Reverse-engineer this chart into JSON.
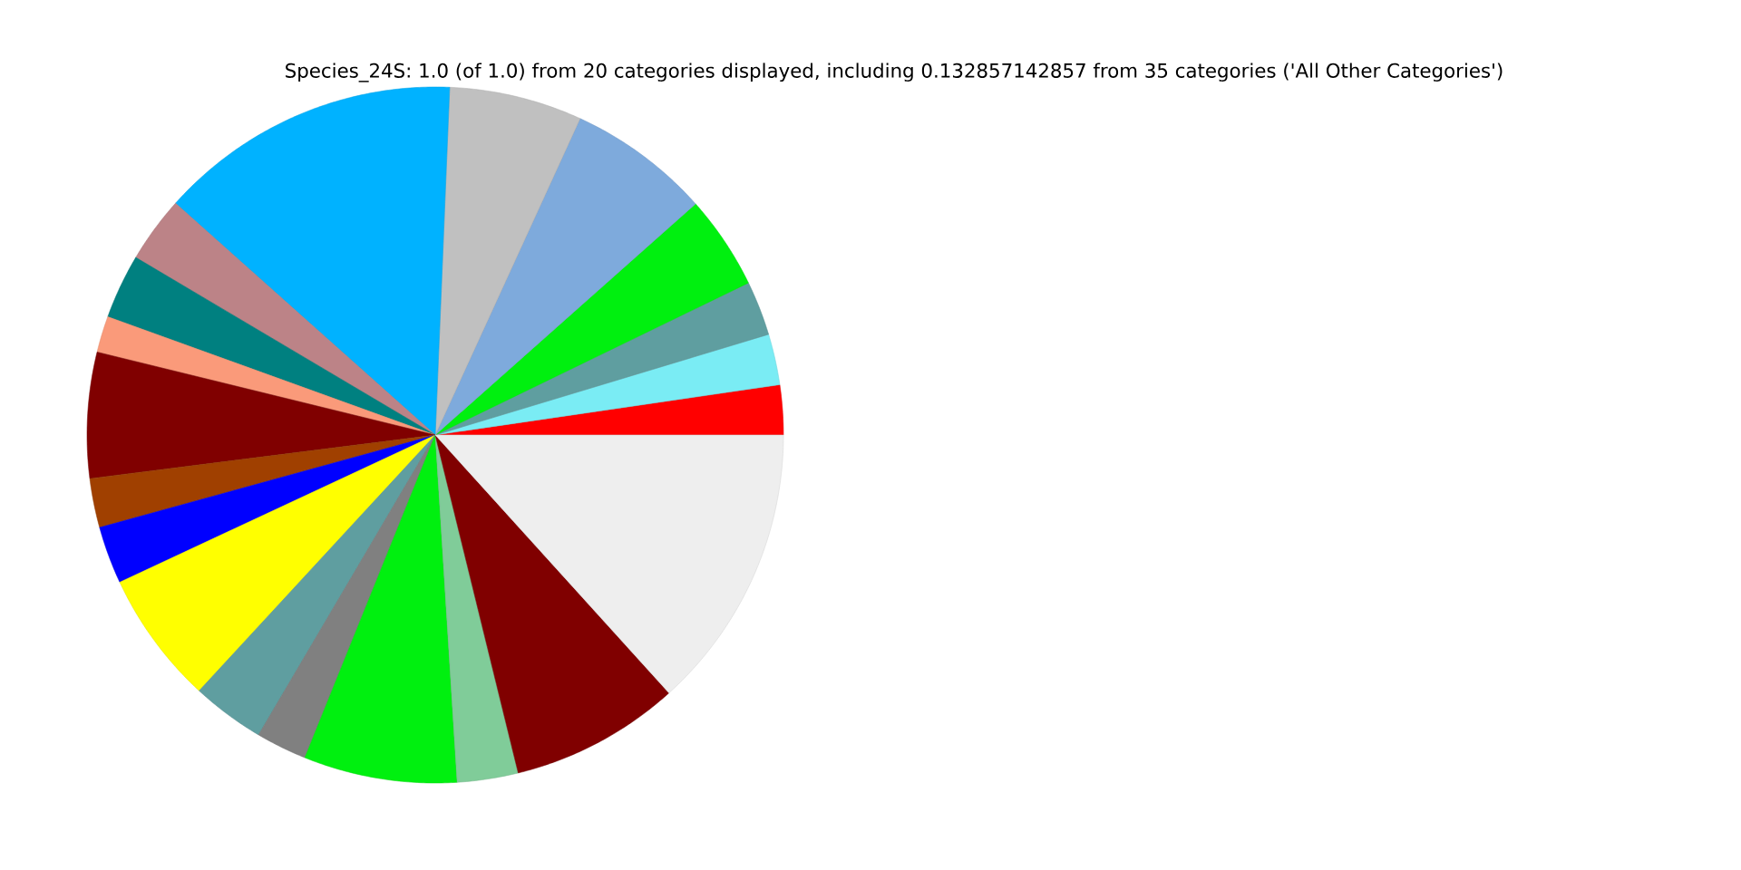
{
  "chart_data": {
    "type": "pie",
    "title": "Species_24S: 1.0 (of 1.0) from 20 categories displayed, including 0.132857142857 from 35 categories ('All Other Categories')",
    "categories": [
      null,
      null,
      null,
      null,
      null,
      null,
      null,
      null,
      null,
      null,
      null,
      null,
      null,
      null,
      null,
      null,
      null,
      null,
      null,
      null
    ],
    "values": [
      2.31,
      2.36,
      2.53,
      4.36,
      6.61,
      6.17,
      14.06,
      3.08,
      3.0,
      1.69,
      5.83,
      2.28,
      2.67,
      6.19,
      3.39,
      2.36,
      7.11,
      2.83,
      7.88,
      13.29
    ],
    "colors": [
      "#ff0000",
      "#7aecf4",
      "#5f9ea0",
      "#00f00f",
      "#7eaadc",
      "#c0c0c0",
      "#00b2ff",
      "#bc8387",
      "#008080",
      "#fa9a7a",
      "#800000",
      "#a04000",
      "#0000ff",
      "#ffff00",
      "#5f9ea0",
      "#808080",
      "#00f00f",
      "#80cc99",
      "#800000",
      "#eeeeee"
    ]
  }
}
